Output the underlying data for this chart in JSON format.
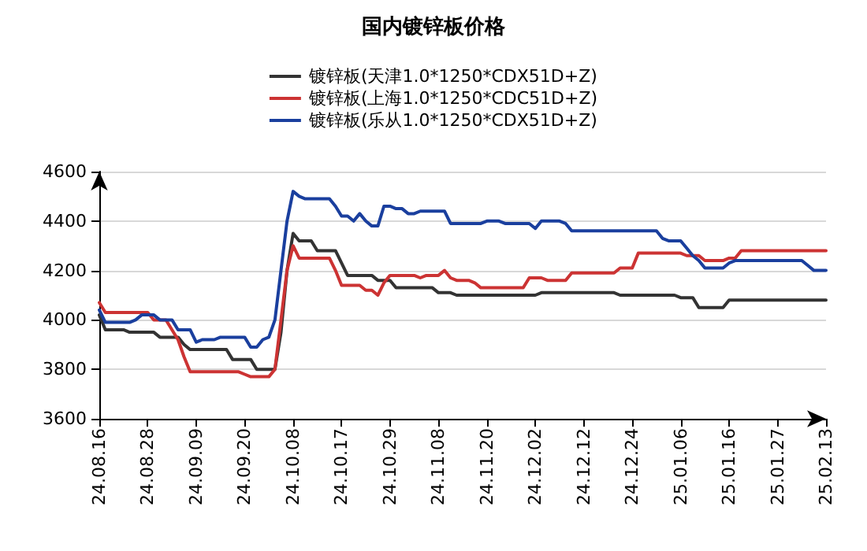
{
  "chart_data": {
    "type": "line",
    "title": "国内镀锌板价格",
    "categories": [
      "24.08.16",
      null,
      null,
      null,
      null,
      null,
      null,
      null,
      "24.08.28",
      null,
      null,
      null,
      null,
      null,
      null,
      null,
      "24.09.09",
      null,
      null,
      null,
      null,
      null,
      null,
      null,
      "24.09.20",
      null,
      null,
      null,
      null,
      null,
      null,
      null,
      "24.10.08",
      null,
      null,
      null,
      null,
      null,
      null,
      null,
      "24.10.17",
      null,
      null,
      null,
      null,
      null,
      null,
      null,
      "24.10.29",
      null,
      null,
      null,
      null,
      null,
      null,
      null,
      "24.11.08",
      null,
      null,
      null,
      null,
      null,
      null,
      null,
      "24.11.20",
      null,
      null,
      null,
      null,
      null,
      null,
      null,
      "24.12.02",
      null,
      null,
      null,
      null,
      null,
      null,
      null,
      "24.12.12",
      null,
      null,
      null,
      null,
      null,
      null,
      null,
      "24.12.24",
      null,
      null,
      null,
      null,
      null,
      null,
      null,
      "25.01.06",
      null,
      null,
      null,
      null,
      null,
      null,
      null,
      "25.01.16",
      null,
      null,
      null,
      null,
      null,
      null,
      null,
      "25.01.27",
      null,
      null,
      null,
      null,
      null,
      null,
      null,
      "25.02.13"
    ],
    "series": [
      {
        "name": "镀锌板(天津1.0*1250*CDX51D+Z)",
        "color": "#333333",
        "values": [
          4020,
          3960,
          3960,
          3960,
          3960,
          3950,
          3950,
          3950,
          3950,
          3950,
          3930,
          3930,
          3930,
          3930,
          3900,
          3880,
          3880,
          3880,
          3880,
          3880,
          3880,
          3880,
          3840,
          3840,
          3840,
          3840,
          3800,
          3800,
          3800,
          3800,
          3950,
          4200,
          4350,
          4320,
          4320,
          4320,
          4280,
          4280,
          4280,
          4280,
          4230,
          4180,
          4180,
          4180,
          4180,
          4180,
          4160,
          4160,
          4160,
          4130,
          4130,
          4130,
          4130,
          4130,
          4130,
          4130,
          4110,
          4110,
          4110,
          4100,
          4100,
          4100,
          4100,
          4100,
          4100,
          4100,
          4100,
          4100,
          4100,
          4100,
          4100,
          4100,
          4100,
          4110,
          4110,
          4110,
          4110,
          4110,
          4110,
          4110,
          4110,
          4110,
          4110,
          4110,
          4110,
          4110,
          4100,
          4100,
          4100,
          4100,
          4100,
          4100,
          4100,
          4100,
          4100,
          4100,
          4090,
          4090,
          4090,
          4050,
          4050,
          4050,
          4050,
          4050,
          4080,
          4080,
          4080,
          4080,
          4080,
          4080,
          4080,
          4080,
          4080,
          4080,
          4080,
          4080,
          4080,
          4080,
          4080,
          4080,
          4080
        ]
      },
      {
        "name": "镀锌板(上海1.0*1250*CDC51D+Z)",
        "color": "#cc3333",
        "values": [
          4070,
          4030,
          4030,
          4030,
          4030,
          4030,
          4030,
          4030,
          4030,
          4000,
          4000,
          4000,
          3960,
          3920,
          3850,
          3790,
          3790,
          3790,
          3790,
          3790,
          3790,
          3790,
          3790,
          3790,
          3780,
          3770,
          3770,
          3770,
          3770,
          3800,
          4000,
          4200,
          4300,
          4250,
          4250,
          4250,
          4250,
          4250,
          4250,
          4200,
          4140,
          4140,
          4140,
          4140,
          4120,
          4120,
          4100,
          4150,
          4180,
          4180,
          4180,
          4180,
          4180,
          4170,
          4180,
          4180,
          4180,
          4200,
          4170,
          4160,
          4160,
          4160,
          4150,
          4130,
          4130,
          4130,
          4130,
          4130,
          4130,
          4130,
          4130,
          4170,
          4170,
          4170,
          4160,
          4160,
          4160,
          4160,
          4190,
          4190,
          4190,
          4190,
          4190,
          4190,
          4190,
          4190,
          4210,
          4210,
          4210,
          4270,
          4270,
          4270,
          4270,
          4270,
          4270,
          4270,
          4270,
          4260,
          4260,
          4260,
          4240,
          4240,
          4240,
          4240,
          4250,
          4250,
          4280,
          4280,
          4280,
          4280,
          4280,
          4280,
          4280,
          4280,
          4280,
          4280,
          4280,
          4280,
          4280,
          4280,
          4280
        ]
      },
      {
        "name": "镀锌板(乐从1.0*1250*CDX51D+Z)",
        "color": "#1a3f9e",
        "values": [
          4040,
          3990,
          3990,
          3990,
          3990,
          3990,
          4000,
          4020,
          4020,
          4020,
          4000,
          4000,
          4000,
          3960,
          3960,
          3960,
          3910,
          3920,
          3920,
          3920,
          3930,
          3930,
          3930,
          3930,
          3930,
          3890,
          3890,
          3920,
          3930,
          4000,
          4200,
          4400,
          4520,
          4500,
          4490,
          4490,
          4490,
          4490,
          4490,
          4460,
          4420,
          4420,
          4400,
          4430,
          4400,
          4380,
          4380,
          4460,
          4460,
          4450,
          4450,
          4430,
          4430,
          4440,
          4440,
          4440,
          4440,
          4440,
          4390,
          4390,
          4390,
          4390,
          4390,
          4390,
          4400,
          4400,
          4400,
          4390,
          4390,
          4390,
          4390,
          4390,
          4370,
          4400,
          4400,
          4400,
          4400,
          4390,
          4360,
          4360,
          4360,
          4360,
          4360,
          4360,
          4360,
          4360,
          4360,
          4360,
          4360,
          4360,
          4360,
          4360,
          4360,
          4330,
          4320,
          4320,
          4320,
          4290,
          4260,
          4240,
          4210,
          4210,
          4210,
          4210,
          4230,
          4240,
          4240,
          4240,
          4240,
          4240,
          4240,
          4240,
          4240,
          4240,
          4240,
          4240,
          4240,
          4220,
          4200,
          4200,
          4200
        ]
      }
    ],
    "ylim": [
      3600,
      4600
    ],
    "yticks": [
      3600,
      3800,
      4000,
      4200,
      4400,
      4600
    ],
    "grid": "y",
    "legend": "top",
    "marker": "none",
    "line_style": "solid"
  }
}
